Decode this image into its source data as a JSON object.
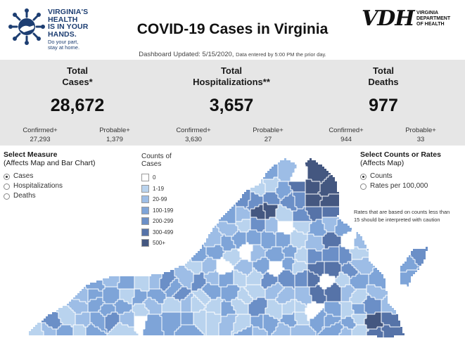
{
  "header": {
    "logo_text_lines": [
      "VIRGINIA'S",
      "HEALTH",
      "IS IN YOUR",
      "HANDS."
    ],
    "logo_sub_lines": [
      "Do your part,",
      "stay at home."
    ],
    "title": "COVID-19 Cases in Virginia",
    "vdh_mark": "VDH",
    "vdh_name_lines": [
      "VIRGINIA",
      "DEPARTMENT",
      "OF HEALTH"
    ],
    "updated": "Dashboard Updated: 5/15/2020,",
    "updated_note": "Data entered by 5:00 PM the prior day."
  },
  "stats": {
    "cases": {
      "label_lines": [
        "Total",
        "Cases*"
      ],
      "value": "28,672"
    },
    "hospitalizations": {
      "label_lines": [
        "Total",
        "Hospitalizations**"
      ],
      "value": "3,657"
    },
    "deaths": {
      "label_lines": [
        "Total",
        "Deaths"
      ],
      "value": "977"
    },
    "breakdown": [
      {
        "label": "Confirmed+",
        "value": "27,293"
      },
      {
        "label": "Probable+",
        "value": "1,379"
      },
      {
        "label": "Confirmed+",
        "value": "3,630"
      },
      {
        "label": "Probable+",
        "value": "27"
      },
      {
        "label": "Confirmed+",
        "value": "944"
      },
      {
        "label": "Probable+",
        "value": "33"
      }
    ]
  },
  "measure": {
    "heading": "Select Measure",
    "subheading": "(Affects Map and Bar Chart)",
    "options": [
      "Cases",
      "Hospitalizations",
      "Deaths"
    ],
    "selected": "Cases"
  },
  "count_mode": {
    "heading": "Select Counts or Rates",
    "subheading": "(Affects Map)",
    "options": [
      "Counts",
      "Rates per 100,000"
    ],
    "selected": "Counts"
  },
  "legend": {
    "heading": "Counts of Cases",
    "items": [
      {
        "label": "0",
        "color": "#ffffff"
      },
      {
        "label": "1-19",
        "color": "#b9d3ee"
      },
      {
        "label": "20-99",
        "color": "#9dbde6"
      },
      {
        "label": "100-199",
        "color": "#7ea4d8"
      },
      {
        "label": "200-299",
        "color": "#6b8fc7"
      },
      {
        "label": "300-499",
        "color": "#5673a8"
      },
      {
        "label": "500+",
        "color": "#445780"
      }
    ]
  },
  "rates_note": "Rates that are based on counts less than 15 should be interpreted with caution"
}
